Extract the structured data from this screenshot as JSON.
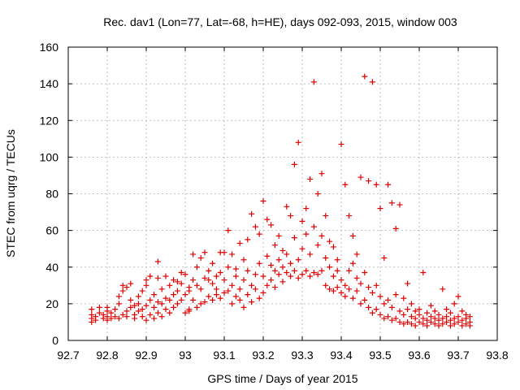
{
  "chart_data": {
    "type": "scatter",
    "title": "Rec. dav1 (Lon=77, Lat=-68, h=HE), days 092-093, 2015, window 003",
    "xlabel": "GPS time / Days of year 2015",
    "ylabel": "STEC from uqrg / TECUs",
    "xlim": [
      92.7,
      93.8
    ],
    "ylim": [
      0,
      160
    ],
    "xticks": [
      "92.7",
      "92.8",
      "92.9",
      "93",
      "93.1",
      "93.2",
      "93.3",
      "93.4",
      "93.5",
      "93.6",
      "93.7",
      "93.8"
    ],
    "yticks": [
      "0",
      "20",
      "40",
      "60",
      "80",
      "100",
      "120",
      "140",
      "160"
    ],
    "grid": true,
    "marker": "plus",
    "marker_color": "#e00000",
    "series": [
      {
        "points": [
          [
            92.76,
            10
          ],
          [
            92.76,
            12
          ],
          [
            92.76,
            14
          ],
          [
            92.76,
            17
          ],
          [
            92.77,
            11
          ],
          [
            92.77,
            13
          ],
          [
            92.78,
            15
          ],
          [
            92.78,
            18
          ],
          [
            92.79,
            12
          ],
          [
            92.79,
            14
          ],
          [
            92.8,
            11
          ],
          [
            92.8,
            13
          ],
          [
            92.8,
            16
          ],
          [
            92.8,
            18
          ],
          [
            92.81,
            12
          ],
          [
            92.81,
            15
          ],
          [
            92.82,
            13
          ],
          [
            92.82,
            17
          ],
          [
            92.83,
            12
          ],
          [
            92.83,
            20
          ],
          [
            92.83,
            24
          ],
          [
            92.84,
            14
          ],
          [
            92.84,
            27
          ],
          [
            92.84,
            30
          ],
          [
            92.85,
            16
          ],
          [
            92.85,
            13
          ],
          [
            92.85,
            29
          ],
          [
            92.86,
            18
          ],
          [
            92.86,
            22
          ],
          [
            92.86,
            31
          ],
          [
            92.87,
            14
          ],
          [
            92.87,
            19
          ],
          [
            92.87,
            12
          ],
          [
            92.88,
            24
          ],
          [
            92.88,
            16
          ],
          [
            92.88,
            20
          ],
          [
            92.89,
            13
          ],
          [
            92.89,
            27
          ],
          [
            92.89,
            17
          ],
          [
            92.9,
            11
          ],
          [
            92.9,
            19
          ],
          [
            92.9,
            30
          ],
          [
            92.9,
            33
          ],
          [
            92.91,
            14
          ],
          [
            92.91,
            22
          ],
          [
            92.91,
            35
          ],
          [
            92.92,
            12
          ],
          [
            92.92,
            18
          ],
          [
            92.92,
            25
          ],
          [
            92.93,
            15
          ],
          [
            92.93,
            21
          ],
          [
            92.93,
            34
          ],
          [
            92.93,
            43
          ],
          [
            92.94,
            13
          ],
          [
            92.94,
            20
          ],
          [
            92.94,
            28
          ],
          [
            92.95,
            17
          ],
          [
            92.95,
            23
          ],
          [
            92.95,
            35
          ],
          [
            92.96,
            15
          ],
          [
            92.96,
            22
          ],
          [
            92.96,
            30
          ],
          [
            92.97,
            18
          ],
          [
            92.97,
            25
          ],
          [
            92.97,
            33
          ],
          [
            92.98,
            20
          ],
          [
            92.98,
            27
          ],
          [
            92.98,
            32
          ],
          [
            92.99,
            22
          ],
          [
            92.99,
            31
          ],
          [
            92.99,
            37
          ],
          [
            93.0,
            15
          ],
          [
            93.0,
            25
          ],
          [
            93.0,
            36
          ],
          [
            93.01,
            17
          ],
          [
            93.01,
            27
          ],
          [
            93.01,
            29
          ],
          [
            93.01,
            16
          ],
          [
            93.02,
            22
          ],
          [
            93.02,
            33
          ],
          [
            93.02,
            47
          ],
          [
            93.03,
            18
          ],
          [
            93.03,
            30
          ],
          [
            93.03,
            40
          ],
          [
            93.04,
            20
          ],
          [
            93.04,
            28
          ],
          [
            93.04,
            45
          ],
          [
            93.05,
            21
          ],
          [
            93.05,
            34
          ],
          [
            93.05,
            48
          ],
          [
            93.06,
            24
          ],
          [
            93.06,
            33
          ],
          [
            93.06,
            38
          ],
          [
            93.07,
            22
          ],
          [
            93.07,
            31
          ],
          [
            93.07,
            42
          ],
          [
            93.08,
            25
          ],
          [
            93.08,
            35
          ],
          [
            93.08,
            28
          ],
          [
            93.09,
            23
          ],
          [
            93.09,
            37
          ],
          [
            93.09,
            48
          ],
          [
            93.1,
            26
          ],
          [
            93.1,
            33
          ],
          [
            93.1,
            48
          ],
          [
            93.11,
            27
          ],
          [
            93.11,
            40
          ],
          [
            93.11,
            60
          ],
          [
            93.12,
            20
          ],
          [
            93.12,
            30
          ],
          [
            93.12,
            47
          ],
          [
            93.13,
            24
          ],
          [
            93.13,
            35
          ],
          [
            93.13,
            39
          ],
          [
            93.14,
            22
          ],
          [
            93.14,
            28
          ],
          [
            93.14,
            53
          ],
          [
            93.15,
            18
          ],
          [
            93.15,
            33
          ],
          [
            93.15,
            44
          ],
          [
            93.16,
            25
          ],
          [
            93.16,
            38
          ],
          [
            93.16,
            55
          ],
          [
            93.17,
            21
          ],
          [
            93.17,
            30
          ],
          [
            93.17,
            69
          ],
          [
            93.18,
            28
          ],
          [
            93.18,
            36
          ],
          [
            93.18,
            62
          ],
          [
            93.19,
            23
          ],
          [
            93.19,
            42
          ],
          [
            93.19,
            58
          ],
          [
            93.2,
            26
          ],
          [
            93.2,
            35
          ],
          [
            93.2,
            76
          ],
          [
            93.21,
            30
          ],
          [
            93.21,
            46
          ],
          [
            93.21,
            66
          ],
          [
            93.22,
            33
          ],
          [
            93.22,
            41
          ],
          [
            93.22,
            63
          ],
          [
            93.23,
            29
          ],
          [
            93.23,
            38
          ],
          [
            93.23,
            52
          ],
          [
            93.24,
            36
          ],
          [
            93.24,
            44
          ],
          [
            93.24,
            57
          ],
          [
            93.25,
            32
          ],
          [
            93.25,
            40
          ],
          [
            93.25,
            49
          ],
          [
            93.26,
            37
          ],
          [
            93.26,
            47
          ],
          [
            93.26,
            73
          ],
          [
            93.27,
            35
          ],
          [
            93.27,
            42
          ],
          [
            93.27,
            68
          ],
          [
            93.28,
            38
          ],
          [
            93.28,
            56
          ],
          [
            93.28,
            96
          ],
          [
            93.29,
            34
          ],
          [
            93.29,
            44
          ],
          [
            93.29,
            108
          ],
          [
            93.3,
            36
          ],
          [
            93.3,
            50
          ],
          [
            93.3,
            65
          ],
          [
            93.31,
            38
          ],
          [
            93.31,
            58
          ],
          [
            93.31,
            72
          ],
          [
            93.32,
            35
          ],
          [
            93.32,
            47
          ],
          [
            93.32,
            88
          ],
          [
            93.33,
            37
          ],
          [
            93.33,
            62
          ],
          [
            93.33,
            141
          ],
          [
            93.34,
            36
          ],
          [
            93.34,
            52
          ],
          [
            93.34,
            80
          ],
          [
            93.35,
            38
          ],
          [
            93.35,
            57
          ],
          [
            93.35,
            91
          ],
          [
            93.36,
            30
          ],
          [
            93.36,
            45
          ],
          [
            93.36,
            68
          ],
          [
            93.37,
            28
          ],
          [
            93.37,
            40
          ],
          [
            93.37,
            54
          ],
          [
            93.38,
            27
          ],
          [
            93.38,
            35
          ],
          [
            93.38,
            51
          ],
          [
            93.39,
            29
          ],
          [
            93.39,
            38
          ],
          [
            93.39,
            44
          ],
          [
            93.4,
            26
          ],
          [
            93.4,
            33
          ],
          [
            93.4,
            107
          ],
          [
            93.41,
            24
          ],
          [
            93.41,
            30
          ],
          [
            93.41,
            85
          ],
          [
            93.42,
            28
          ],
          [
            93.42,
            38
          ],
          [
            93.42,
            68
          ],
          [
            93.43,
            23
          ],
          [
            93.43,
            42
          ],
          [
            93.43,
            57
          ],
          [
            93.44,
            27
          ],
          [
            93.44,
            34
          ],
          [
            93.44,
            47
          ],
          [
            93.45,
            20
          ],
          [
            93.45,
            31
          ],
          [
            93.45,
            89
          ],
          [
            93.46,
            22
          ],
          [
            93.46,
            37
          ],
          [
            93.46,
            144
          ],
          [
            93.47,
            18
          ],
          [
            93.47,
            29
          ],
          [
            93.47,
            87
          ],
          [
            93.48,
            15
          ],
          [
            93.48,
            26
          ],
          [
            93.48,
            141
          ],
          [
            93.49,
            17
          ],
          [
            93.49,
            30
          ],
          [
            93.49,
            85
          ],
          [
            93.5,
            14
          ],
          [
            93.5,
            24
          ],
          [
            93.5,
            72
          ],
          [
            93.51,
            12
          ],
          [
            93.51,
            20
          ],
          [
            93.51,
            45
          ],
          [
            93.52,
            13
          ],
          [
            93.52,
            22
          ],
          [
            93.52,
            85
          ],
          [
            93.53,
            11
          ],
          [
            93.53,
            18
          ],
          [
            93.53,
            75
          ],
          [
            93.54,
            12
          ],
          [
            93.54,
            25
          ],
          [
            93.54,
            61
          ],
          [
            93.55,
            10
          ],
          [
            93.55,
            16
          ],
          [
            93.55,
            74
          ],
          [
            93.56,
            9
          ],
          [
            93.56,
            14
          ],
          [
            93.56,
            23
          ],
          [
            93.57,
            10
          ],
          [
            93.57,
            17
          ],
          [
            93.57,
            31
          ],
          [
            93.58,
            9
          ],
          [
            93.58,
            13
          ],
          [
            93.58,
            20
          ],
          [
            93.59,
            8
          ],
          [
            93.59,
            12
          ],
          [
            93.59,
            16
          ],
          [
            93.6,
            10
          ],
          [
            93.6,
            14
          ],
          [
            93.6,
            17
          ],
          [
            93.61,
            9
          ],
          [
            93.61,
            12
          ],
          [
            93.61,
            37
          ],
          [
            93.62,
            8
          ],
          [
            93.62,
            11
          ],
          [
            93.62,
            15
          ],
          [
            93.63,
            10
          ],
          [
            93.63,
            13
          ],
          [
            93.63,
            19
          ],
          [
            93.64,
            9
          ],
          [
            93.64,
            12
          ],
          [
            93.64,
            16
          ],
          [
            93.65,
            8
          ],
          [
            93.65,
            11
          ],
          [
            93.65,
            14
          ],
          [
            93.66,
            9
          ],
          [
            93.66,
            12
          ],
          [
            93.66,
            28
          ],
          [
            93.67,
            10
          ],
          [
            93.67,
            13
          ],
          [
            93.67,
            17
          ],
          [
            93.68,
            8
          ],
          [
            93.68,
            11
          ],
          [
            93.68,
            15
          ],
          [
            93.69,
            9
          ],
          [
            93.69,
            12
          ],
          [
            93.69,
            20
          ],
          [
            93.7,
            10
          ],
          [
            93.7,
            13
          ],
          [
            93.7,
            24
          ],
          [
            93.71,
            8
          ],
          [
            93.71,
            11
          ],
          [
            93.71,
            16
          ],
          [
            93.72,
            9
          ],
          [
            93.72,
            12
          ],
          [
            93.72,
            14
          ],
          [
            93.73,
            10
          ],
          [
            93.73,
            8
          ],
          [
            93.73,
            13
          ]
        ]
      }
    ]
  }
}
